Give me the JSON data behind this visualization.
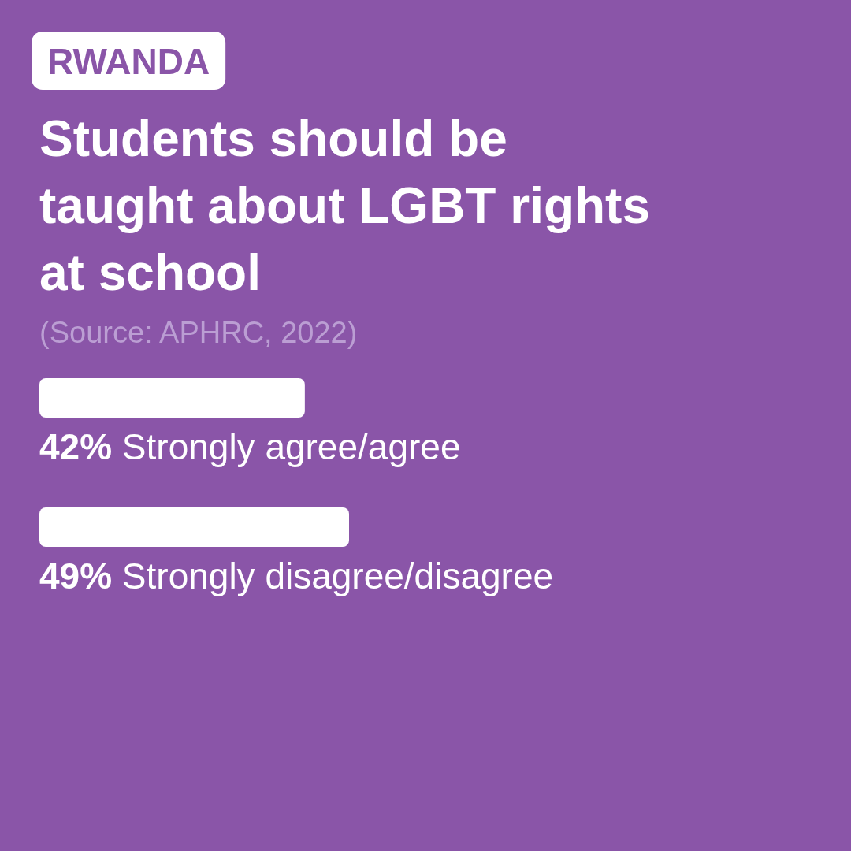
{
  "chart_data": {
    "type": "bar",
    "orientation": "horizontal",
    "title": "Students should be taught about LGBT rights at school",
    "subtitle": "RWANDA",
    "annotations": [
      "(Source: APHRC, 2022)"
    ],
    "categories": [
      "Strongly agree/agree",
      "Strongly disagree/disagree"
    ],
    "values": [
      42,
      49
    ],
    "value_labels": [
      "42%",
      "49%"
    ],
    "color": "#ffffff",
    "tick_labels": false
  }
}
